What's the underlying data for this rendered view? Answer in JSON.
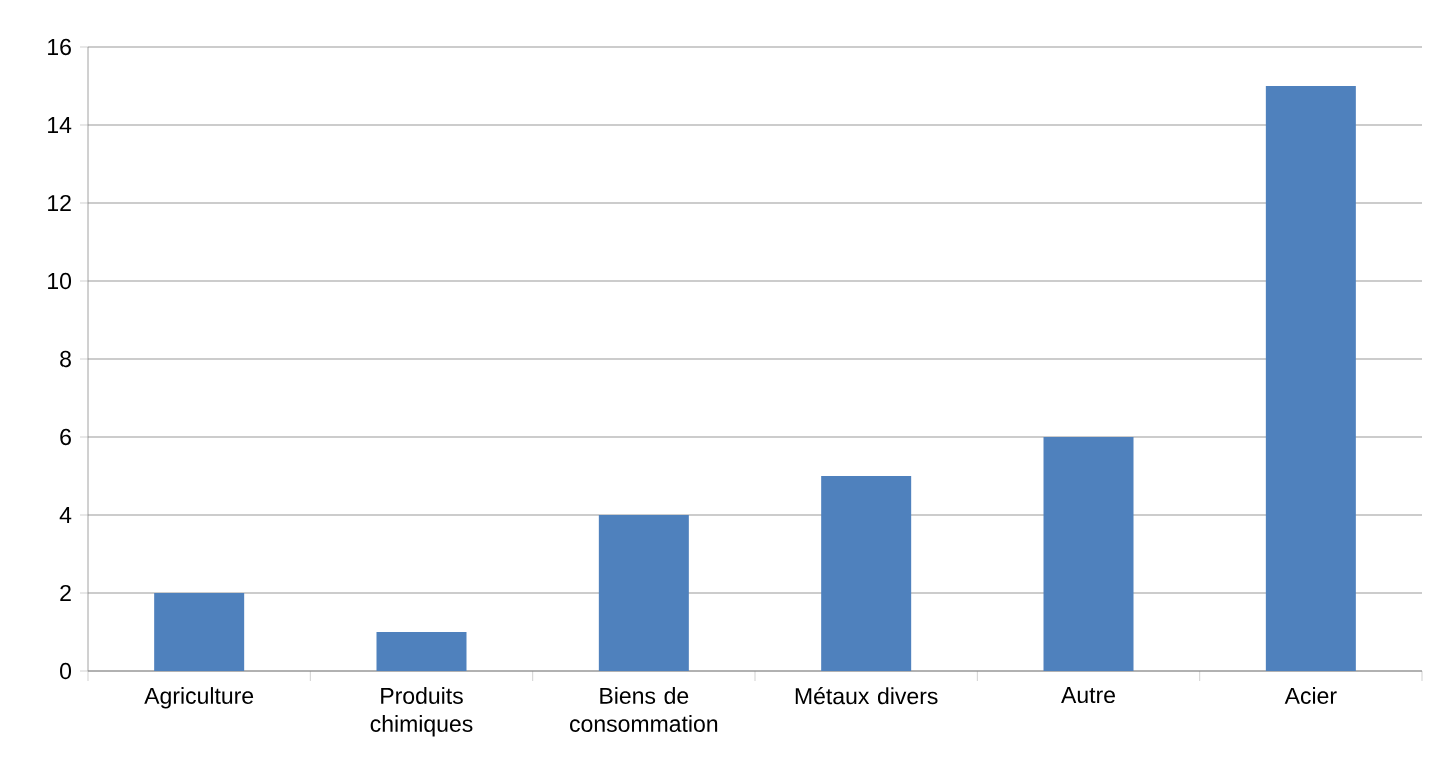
{
  "chart_data": {
    "type": "bar",
    "categories": [
      "Agriculture",
      "Produits chimiques",
      "Biens de consommation",
      "Métaux divers",
      "Autre",
      "Acier"
    ],
    "values": [
      2,
      1,
      4,
      5,
      6,
      15
    ],
    "color": "#4f81bd",
    "ylim": [
      0,
      16
    ],
    "yticks": [
      0,
      2,
      4,
      6,
      8,
      10,
      12,
      14,
      16
    ],
    "grid": "y"
  }
}
